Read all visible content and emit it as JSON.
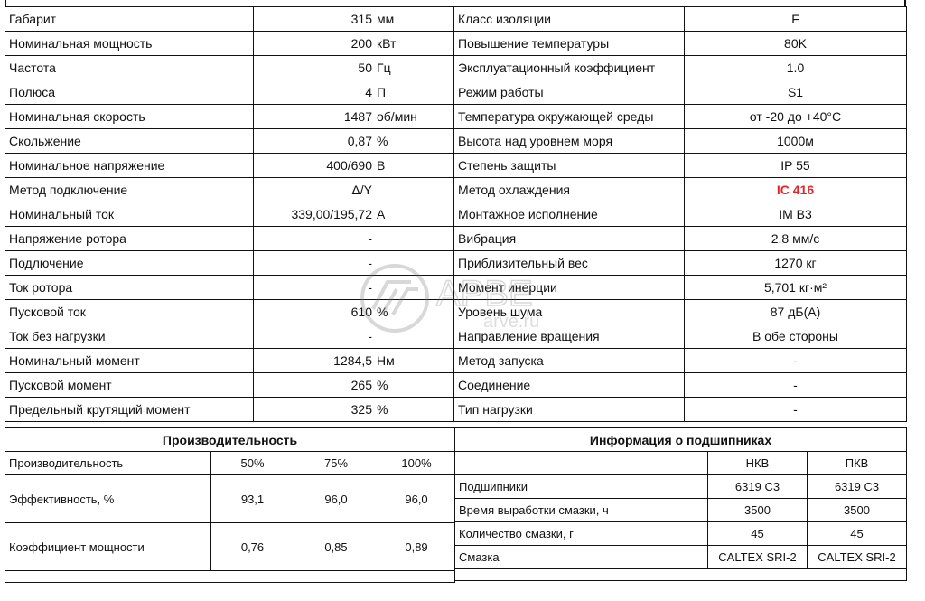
{
  "left_rows": [
    {
      "label": "Габарит",
      "value": "315",
      "unit": "мм"
    },
    {
      "label": "Номинальная мощность",
      "value": "200",
      "unit": "кВт"
    },
    {
      "label": "Частота",
      "value": "50",
      "unit": "Гц"
    },
    {
      "label": "Полюса",
      "value": "4",
      "unit": "П"
    },
    {
      "label": "Номинальная скорость",
      "value": "1487",
      "unit": "об/мин"
    },
    {
      "label": "Скольжение",
      "value": "0,87",
      "unit": "%"
    },
    {
      "label": "Номинальное напряжение",
      "value": "400/690",
      "unit": "В"
    },
    {
      "label": "Метод подключение",
      "value": "Δ/Y",
      "unit": ""
    },
    {
      "label": "Номинальный ток",
      "value": "339,00/195,72",
      "unit": "А"
    },
    {
      "label": "Напряжение ротора",
      "value": "-",
      "unit": ""
    },
    {
      "label": "Подлючение",
      "value": "-",
      "unit": ""
    },
    {
      "label": "Ток ротора",
      "value": "-",
      "unit": ""
    },
    {
      "label": "Пусковой ток",
      "value": "610",
      "unit": "%"
    },
    {
      "label": "Ток без нагрузки",
      "value": "-",
      "unit": ""
    },
    {
      "label": "Номинальный момент",
      "value": "1284,5",
      "unit": "Нм"
    },
    {
      "label": "Пусковой момент",
      "value": "265",
      "unit": "%"
    },
    {
      "label": "Предельный крутящий момент",
      "value": "325",
      "unit": "%"
    }
  ],
  "right_rows": [
    {
      "label": "Класс изоляции",
      "value": "F"
    },
    {
      "label": "Повышение температуры",
      "value": "80K"
    },
    {
      "label": "Эксплуатационный коэффициент",
      "value": "1.0"
    },
    {
      "label": "Режим работы",
      "value": "S1"
    },
    {
      "label": "Температура окружающей среды",
      "value": "от -20 до +40°C"
    },
    {
      "label": "Высота над уровнем моря",
      "value": "1000м"
    },
    {
      "label": "Степень защиты",
      "value": "IP 55"
    },
    {
      "label": "Метод охлаждения",
      "value": "IC 416",
      "highlight": "#e0262b"
    },
    {
      "label": "Монтажное исполнение",
      "value": "IM B3"
    },
    {
      "label": "Вибрация",
      "value": "2,8 мм/с"
    },
    {
      "label": "Приблизительный вес",
      "value": "1270 кг"
    },
    {
      "label": "Момент инерции",
      "value": "5,701 кг·м²"
    },
    {
      "label": "Уровень шума",
      "value": "87 дБ(А)"
    },
    {
      "label": "Направление вращения",
      "value": "В обе стороны"
    },
    {
      "label": "Метод запуска",
      "value": "-"
    },
    {
      "label": "Соединение",
      "value": "-"
    },
    {
      "label": "Тип нагрузки",
      "value": "-"
    }
  ],
  "performance": {
    "title": "Производительность",
    "header": [
      "Производительность",
      "50%",
      "75%",
      "100%"
    ],
    "rows": [
      [
        "Эффективность, %",
        "93,1",
        "96,0",
        "96,0"
      ],
      [
        "Коэффициент мощности",
        "0,76",
        "0,85",
        "0,89"
      ]
    ]
  },
  "bearings": {
    "title": "Информация о подшипниках",
    "header": [
      "",
      "НКВ",
      "ПКВ"
    ],
    "rows": [
      [
        "Подшипники",
        "6319 C3",
        "6319 C3"
      ],
      [
        "Время выработки смазки, ч",
        "3500",
        "3500"
      ],
      [
        "Количество смазки, г",
        "45",
        "45"
      ],
      [
        "Смазка",
        "CALTEX SRI-2",
        "CALTEX SRI-2"
      ]
    ]
  },
  "watermark": {
    "brand": "APBE",
    "site": "arve.ru"
  }
}
